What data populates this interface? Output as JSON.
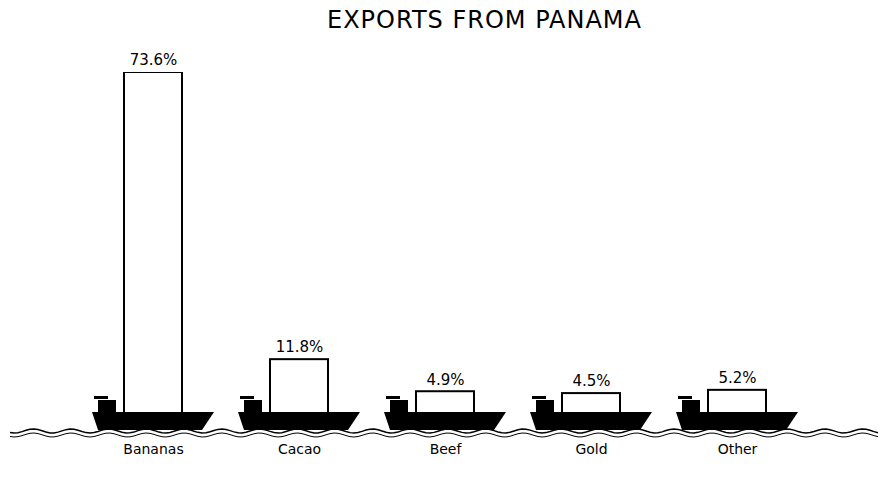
{
  "chart_data": {
    "type": "bar",
    "title": "EXPORTS FROM PANAMA",
    "categories": [
      "Bananas",
      "Cacao",
      "Beef",
      "Gold",
      "Other"
    ],
    "values": [
      73.6,
      11.8,
      4.9,
      4.5,
      5.2
    ],
    "value_labels": [
      "73.6%",
      "11.8%",
      "4.9%",
      "4.5%",
      "5.2%"
    ],
    "color": "#000000",
    "data_labels": true,
    "tick_labels": "x"
  }
}
